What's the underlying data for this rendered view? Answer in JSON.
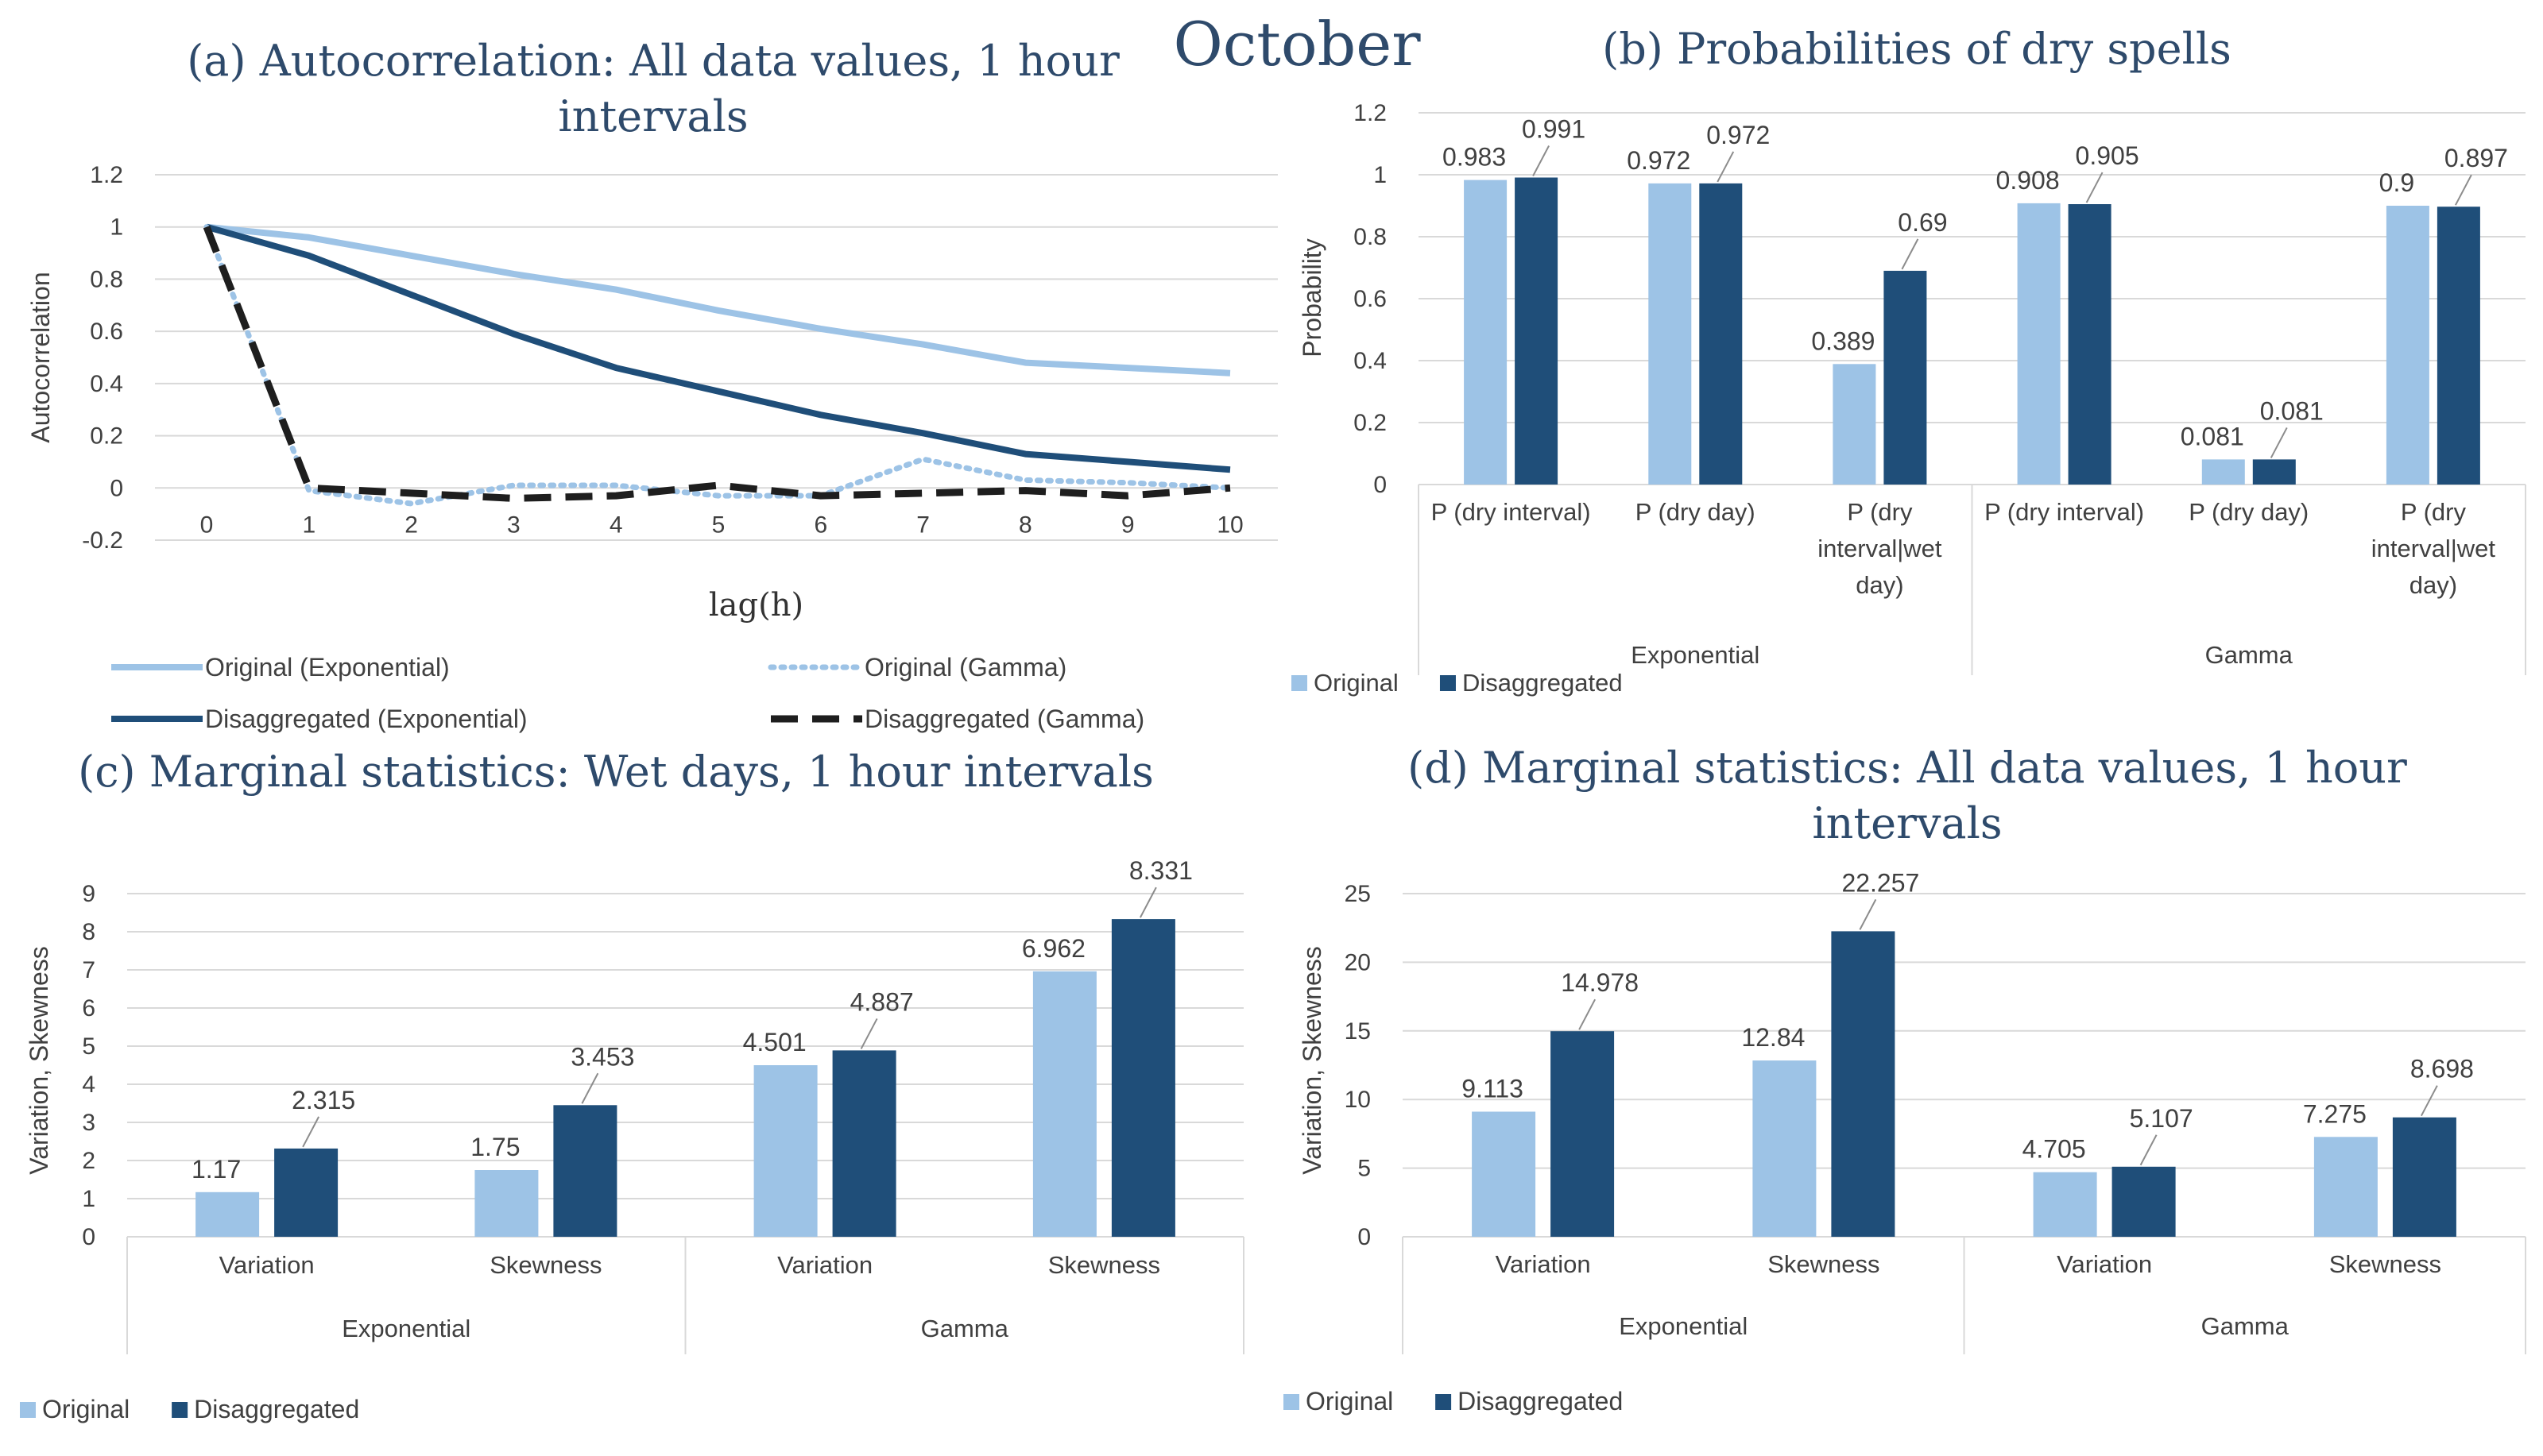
{
  "page_title": "October",
  "colors": {
    "light": "#9dc3e6",
    "dark": "#1f4e79",
    "black": "#1e1e1e",
    "title": "#2e4a6b",
    "grid": "#d9d9d9",
    "text": "#404040"
  },
  "chart_data": [
    {
      "id": "a",
      "type": "line",
      "title_letter": "(a)",
      "title_lines": [
        "Autocorrelation: All data values, 1 hour",
        "intervals"
      ],
      "xlabel": "lag(h)",
      "ylabel": "Autocorrelation",
      "x": [
        0,
        1,
        2,
        3,
        4,
        5,
        6,
        7,
        8,
        9,
        10
      ],
      "x_tick_labels": [
        "0",
        "1",
        "2",
        "3",
        "4",
        "5",
        "6",
        "7",
        "8",
        "9",
        "10"
      ],
      "ylim": [
        -0.2,
        1.2
      ],
      "y_ticks": [
        1.2,
        1,
        0.8,
        0.6,
        0.4,
        0.2,
        0,
        -0.2
      ],
      "y_tick_labels": [
        "1.2",
        "1",
        "0.8",
        "0.6",
        "0.4",
        "0.2",
        "0",
        "-0.2"
      ],
      "grid": true,
      "legend_position": "bottom",
      "series": [
        {
          "name": "Original (Exponential)",
          "style": "solid",
          "color": "#9dc3e6",
          "values": [
            1,
            0.96,
            0.89,
            0.82,
            0.76,
            0.68,
            0.61,
            0.55,
            0.48,
            0.46,
            0.44
          ]
        },
        {
          "name": "Original (Gamma)",
          "style": "dotted",
          "color": "#9dc3e6",
          "values": [
            1,
            -0.01,
            -0.06,
            0.01,
            0.01,
            -0.03,
            -0.03,
            0.11,
            0.03,
            0.02,
            0.0
          ]
        },
        {
          "name": "Disaggregated (Exponential)",
          "style": "solid",
          "color": "#1f4e79",
          "values": [
            1,
            0.89,
            0.74,
            0.59,
            0.46,
            0.37,
            0.28,
            0.21,
            0.13,
            0.1,
            0.07
          ]
        },
        {
          "name": "Disaggregated (Gamma)",
          "style": "dashed",
          "color": "#1e1e1e",
          "values": [
            1,
            0.0,
            -0.02,
            -0.04,
            -0.03,
            0.01,
            -0.03,
            -0.02,
            -0.01,
            -0.03,
            0.0
          ]
        }
      ]
    },
    {
      "id": "b",
      "type": "bar",
      "title_letter": "(b)",
      "title_lines": [
        "Probabilities of dry spells"
      ],
      "ylabel": "Probability",
      "ylim": [
        0,
        1.2
      ],
      "y_ticks": [
        1.2,
        1,
        0.8,
        0.6,
        0.4,
        0.2,
        0
      ],
      "y_tick_labels": [
        "1.2",
        "1",
        "0.8",
        "0.6",
        "0.4",
        "0.2",
        "0"
      ],
      "categories": [
        {
          "lines": [
            "P (dry interval)"
          ]
        },
        {
          "lines": [
            "P (dry day)"
          ]
        },
        {
          "lines": [
            "P (dry",
            "interval|wet",
            "day)"
          ]
        },
        {
          "lines": [
            "P (dry interval)"
          ]
        },
        {
          "lines": [
            "P (dry day)"
          ]
        },
        {
          "lines": [
            "P (dry",
            "interval|wet",
            "day)"
          ]
        }
      ],
      "groups": [
        {
          "name": "Exponential",
          "span": [
            0,
            3
          ]
        },
        {
          "name": "Gamma",
          "span": [
            3,
            6
          ]
        }
      ],
      "legend_position": "bottom-left",
      "series": [
        {
          "name": "Original",
          "color": "#9dc3e6",
          "values": [
            0.983,
            0.972,
            0.389,
            0.908,
            0.081,
            0.9
          ],
          "labels": [
            "0.983",
            "0.972",
            "0.389",
            "0.908",
            "0.081",
            "0.9"
          ]
        },
        {
          "name": "Disaggregated",
          "color": "#1f4e79",
          "values": [
            0.991,
            0.972,
            0.69,
            0.905,
            0.081,
            0.897
          ],
          "labels": [
            "0.991",
            "0.972",
            "0.69",
            "0.905",
            "0.081",
            "0.897"
          ]
        }
      ]
    },
    {
      "id": "c",
      "type": "bar",
      "title_letter": "(c)",
      "title_lines": [
        "Marginal statistics: Wet days, 1 hour intervals"
      ],
      "ylabel": "Variation, Skewness",
      "ylim": [
        0,
        9
      ],
      "y_ticks": [
        9,
        8,
        7,
        6,
        5,
        4,
        3,
        2,
        1,
        0
      ],
      "y_tick_labels": [
        "9",
        "8",
        "7",
        "6",
        "5",
        "4",
        "3",
        "2",
        "1",
        "0"
      ],
      "categories": [
        {
          "lines": [
            "Variation"
          ]
        },
        {
          "lines": [
            "Skewness"
          ]
        },
        {
          "lines": [
            "Variation"
          ]
        },
        {
          "lines": [
            "Skewness"
          ]
        }
      ],
      "groups": [
        {
          "name": "Exponential",
          "span": [
            0,
            2
          ]
        },
        {
          "name": "Gamma",
          "span": [
            2,
            4
          ]
        }
      ],
      "legend_position": "bottom-left",
      "series": [
        {
          "name": "Original",
          "color": "#9dc3e6",
          "values": [
            1.17,
            1.75,
            4.501,
            6.962
          ],
          "labels": [
            "1.17",
            "1.75",
            "4.501",
            "6.962"
          ]
        },
        {
          "name": "Disaggregated",
          "color": "#1f4e79",
          "values": [
            2.315,
            3.453,
            4.887,
            8.331
          ],
          "labels": [
            "2.315",
            "3.453",
            "4.887",
            "8.331"
          ]
        }
      ]
    },
    {
      "id": "d",
      "type": "bar",
      "title_letter": "(d)",
      "title_lines": [
        "Marginal statistics: All data values, 1 hour",
        "intervals"
      ],
      "ylabel": "Variation, Skewness",
      "ylim": [
        0,
        25
      ],
      "y_ticks": [
        25,
        20,
        15,
        10,
        5,
        0
      ],
      "y_tick_labels": [
        "25",
        "20",
        "15",
        "10",
        "5",
        "0"
      ],
      "categories": [
        {
          "lines": [
            "Variation"
          ]
        },
        {
          "lines": [
            "Skewness"
          ]
        },
        {
          "lines": [
            "Variation"
          ]
        },
        {
          "lines": [
            "Skewness"
          ]
        }
      ],
      "groups": [
        {
          "name": "Exponential",
          "span": [
            0,
            2
          ]
        },
        {
          "name": "Gamma",
          "span": [
            2,
            4
          ]
        }
      ],
      "legend_position": "bottom-left",
      "series": [
        {
          "name": "Original",
          "color": "#9dc3e6",
          "values": [
            9.113,
            12.84,
            4.705,
            7.275
          ],
          "labels": [
            "9.113",
            "12.84",
            "4.705",
            "7.275"
          ]
        },
        {
          "name": "Disaggregated",
          "color": "#1f4e79",
          "values": [
            14.978,
            22.257,
            5.107,
            8.698
          ],
          "labels": [
            "14.978",
            "22.257",
            "5.107",
            "8.698"
          ]
        }
      ]
    }
  ]
}
